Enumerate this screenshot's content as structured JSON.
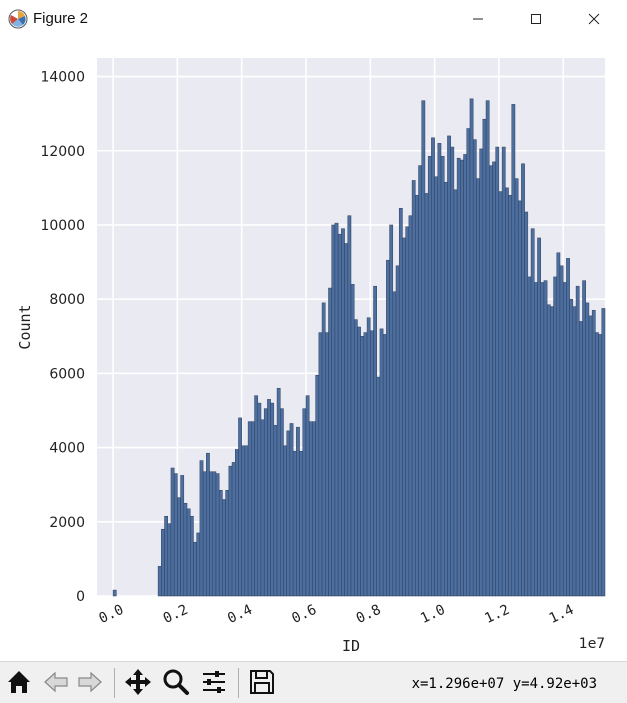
{
  "window": {
    "title": "Figure 2",
    "icons": {
      "app": "matplotlib-icon",
      "minimize": "minimize-icon",
      "maximize": "maximize-icon",
      "close": "close-icon"
    }
  },
  "toolbar": {
    "buttons": [
      "home-icon",
      "back-icon",
      "forward-icon",
      "pan-icon",
      "zoom-icon",
      "configure-subplots-icon",
      "save-icon"
    ],
    "coords_text": "x=1.296e+07 y=4.92e+03"
  },
  "chart_data": {
    "type": "bar",
    "style": "seaborn-darkgrid histogram",
    "xlabel": "ID",
    "ylabel": "Count",
    "x_offset_text": "1e7",
    "xlim": [
      -0.05,
      1.53
    ],
    "ylim": [
      0,
      14500
    ],
    "x_ticks": [
      0.0,
      0.2,
      0.4,
      0.6,
      0.8,
      1.0,
      1.2,
      1.4
    ],
    "x_tick_labels": [
      "0.0",
      "0.2",
      "0.4",
      "0.6",
      "0.8",
      "1.0",
      "1.2",
      "1.4"
    ],
    "y_ticks": [
      0,
      2000,
      4000,
      6000,
      8000,
      10000,
      12000,
      14000
    ],
    "y_tick_labels": [
      "0",
      "2000",
      "4000",
      "6000",
      "8000",
      "10000",
      "12000",
      "14000"
    ],
    "grid": true,
    "bin_start": 0.0,
    "bin_width": 0.01,
    "colors": {
      "bar_fill": "#4c6fa0",
      "bar_edge": "#2f3f5c",
      "axes_bg": "#eaeaf2",
      "grid": "#ffffff"
    },
    "values": [
      160,
      0,
      0,
      0,
      0,
      0,
      0,
      0,
      0,
      0,
      0,
      0,
      0,
      0,
      800,
      1800,
      2150,
      1950,
      3450,
      3300,
      2650,
      3250,
      2500,
      2350,
      2150,
      1450,
      1700,
      3650,
      3350,
      3850,
      3350,
      3350,
      3300,
      2850,
      2600,
      2850,
      3500,
      3600,
      3950,
      4800,
      4050,
      4050,
      4700,
      4700,
      5400,
      5200,
      4750,
      5050,
      5300,
      5200,
      4600,
      5600,
      5050,
      4050,
      4450,
      4650,
      3900,
      4550,
      3900,
      5050,
      5400,
      4700,
      4700,
      5950,
      7100,
      7900,
      7100,
      8300,
      10000,
      10050,
      9750,
      9900,
      9500,
      10250,
      8400,
      7450,
      7250,
      7000,
      7100,
      7500,
      7150,
      8350,
      5900,
      7200,
      7050,
      9050,
      10000,
      8200,
      8900,
      10450,
      9650,
      9950,
      10250,
      11200,
      10800,
      11600,
      13350,
      10850,
      11850,
      12350,
      11300,
      12200,
      11850,
      11150,
      12400,
      12100,
      10950,
      11800,
      11750,
      11900,
      12600,
      13400,
      12300,
      11250,
      12050,
      12850,
      13350,
      11600,
      11700,
      12100,
      10900,
      12100,
      11000,
      10800,
      13250,
      11250,
      10650,
      11650,
      10350,
      8600,
      9900,
      8450,
      9650,
      8450,
      8500,
      7850,
      7800,
      8600,
      9250,
      8900,
      8450,
      9100,
      8000,
      7800,
      8350,
      7400,
      8500,
      7900,
      7550,
      7700,
      7100,
      7050,
      7750
    ]
  }
}
